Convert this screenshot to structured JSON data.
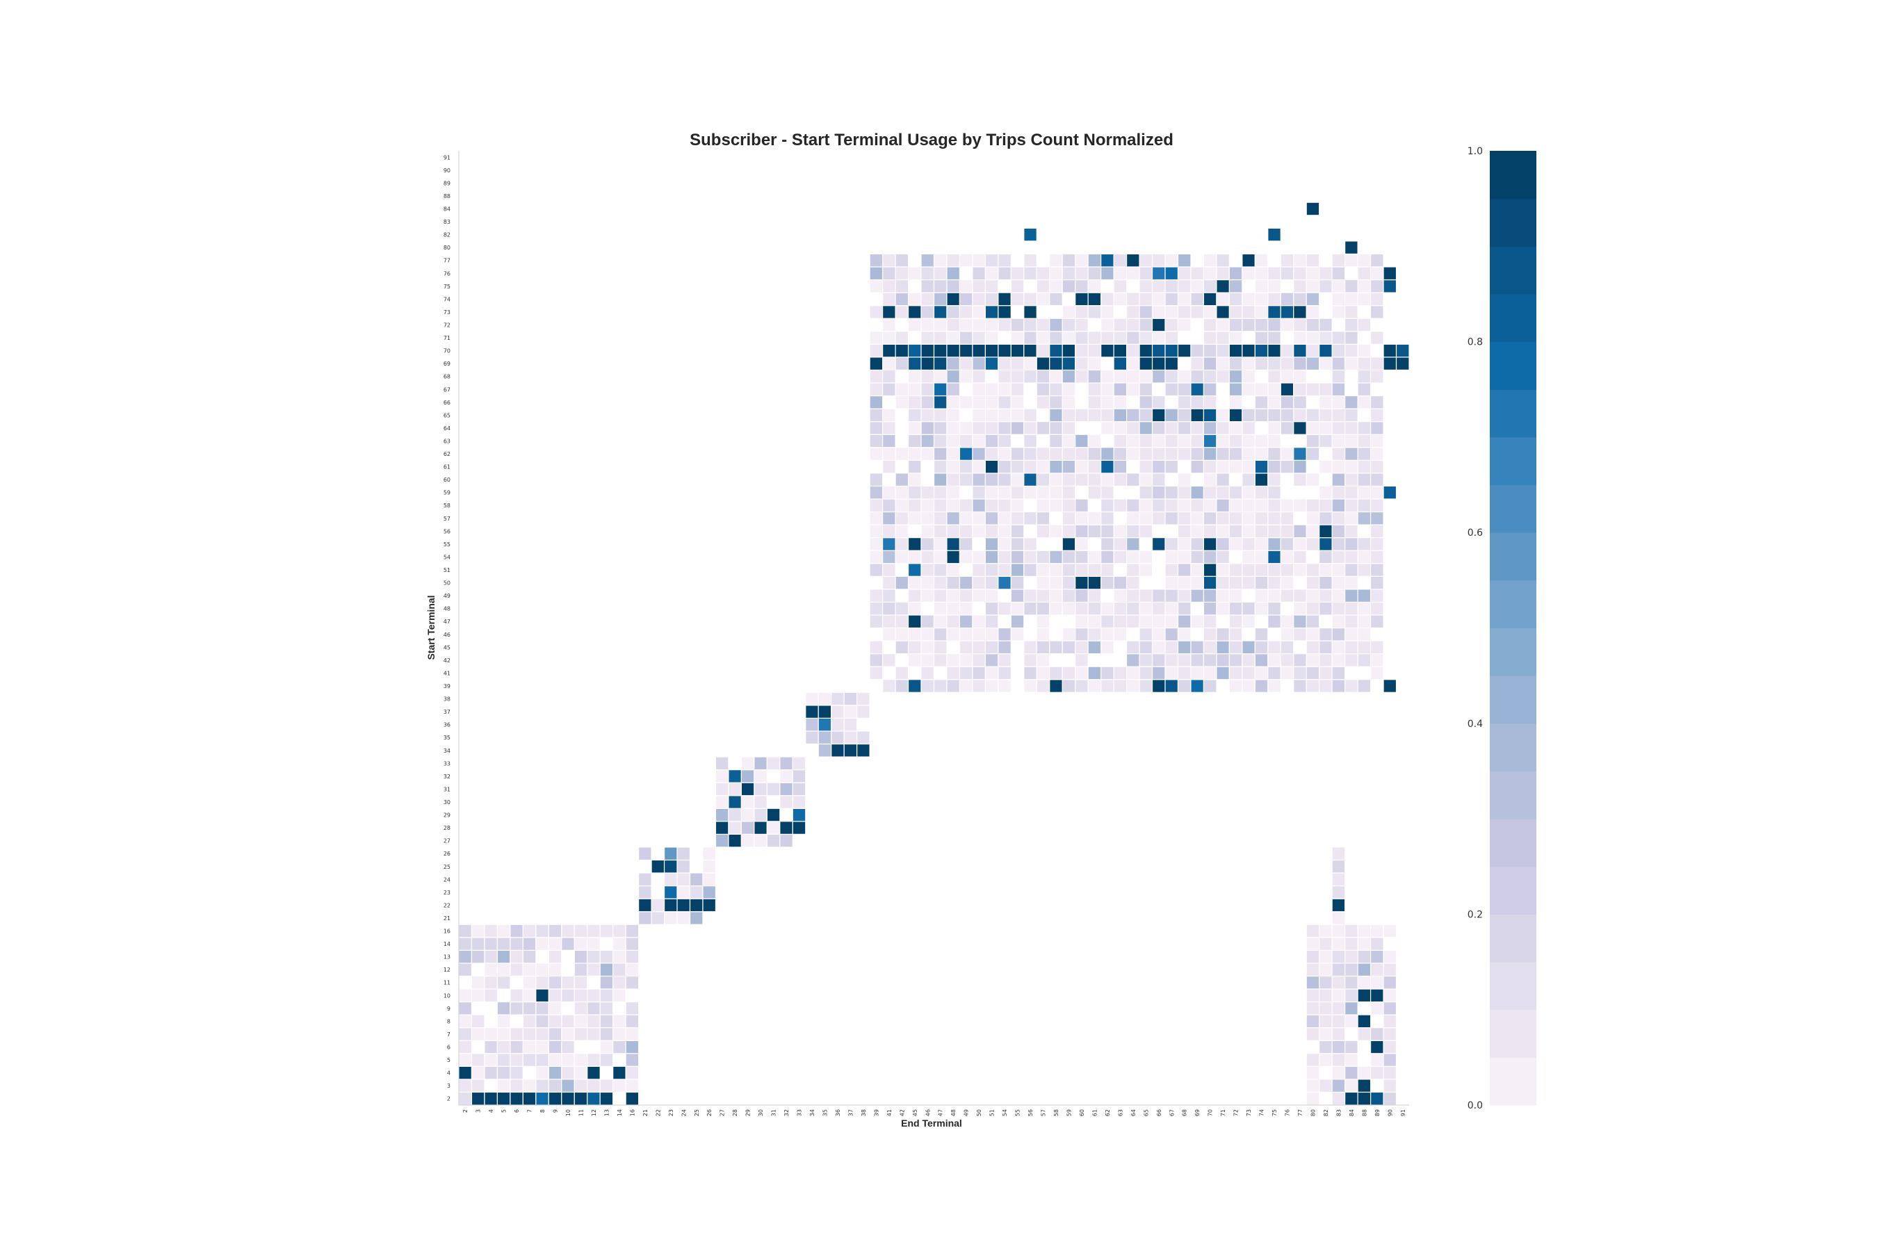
{
  "chart_data": {
    "type": "heatmap",
    "title": "Subscriber - Start Terminal Usage by Trips Count Normalized",
    "xlabel": "End Terminal",
    "ylabel": "Start Terminal",
    "terminals": [
      "2",
      "3",
      "4",
      "5",
      "6",
      "7",
      "8",
      "9",
      "10",
      "11",
      "12",
      "13",
      "14",
      "16",
      "21",
      "22",
      "23",
      "24",
      "25",
      "26",
      "27",
      "28",
      "29",
      "30",
      "31",
      "32",
      "33",
      "34",
      "35",
      "36",
      "37",
      "38",
      "39",
      "41",
      "42",
      "45",
      "46",
      "47",
      "48",
      "49",
      "50",
      "51",
      "54",
      "55",
      "56",
      "57",
      "58",
      "59",
      "60",
      "61",
      "62",
      "63",
      "64",
      "65",
      "66",
      "67",
      "68",
      "69",
      "70",
      "71",
      "72",
      "73",
      "74",
      "75",
      "76",
      "77",
      "80",
      "82",
      "83",
      "84",
      "88",
      "89",
      "90",
      "91"
    ],
    "colorbar": {
      "min": 0.0,
      "max": 1.0,
      "ticks": [
        "0.0",
        "0.2",
        "0.4",
        "0.6",
        "0.8",
        "1.0"
      ],
      "levels": 20
    },
    "colormap": [
      "#f6eff7",
      "#ede6f2",
      "#e3dfee",
      "#d9d6ea",
      "#cfcee6",
      "#c4c6e2",
      "#b7c0dd",
      "#a9bad9",
      "#98b3d5",
      "#86acd0",
      "#73a3cc",
      "#5f98c5",
      "#4b8dc0",
      "#3783bb",
      "#2277b3",
      "#0f6aa8",
      "#0b609a",
      "#08568a",
      "#064b79",
      "#034168"
    ],
    "grid": false,
    "colorbar_position": "right",
    "blocks": [
      {
        "rows": [
          0,
          13
        ],
        "cols": [
          0,
          13
        ]
      },
      {
        "rows": [
          14,
          19
        ],
        "cols": [
          14,
          19
        ]
      },
      {
        "rows": [
          20,
          26
        ],
        "cols": [
          20,
          26
        ]
      },
      {
        "rows": [
          27,
          31
        ],
        "cols": [
          27,
          31
        ]
      },
      {
        "rows": [
          32,
          65
        ],
        "cols": [
          32,
          71
        ]
      },
      {
        "rows": [
          0,
          13
        ],
        "cols": [
          66,
          72
        ]
      },
      {
        "rows": [
          14,
          19
        ],
        "cols": [
          68,
          68
        ]
      }
    ],
    "highlights": [
      {
        "row": "2",
        "col": "3",
        "value": 1.0
      },
      {
        "row": "2",
        "col": "4",
        "value": 1.0
      },
      {
        "row": "2",
        "col": "5",
        "value": 1.0
      },
      {
        "row": "2",
        "col": "6",
        "value": 1.0
      },
      {
        "row": "2",
        "col": "7",
        "value": 1.0
      },
      {
        "row": "2",
        "col": "8",
        "value": 0.75
      },
      {
        "row": "2",
        "col": "9",
        "value": 1.0
      },
      {
        "row": "2",
        "col": "10",
        "value": 1.0
      },
      {
        "row": "2",
        "col": "11",
        "value": 1.0
      },
      {
        "row": "2",
        "col": "12",
        "value": 0.8
      },
      {
        "row": "2",
        "col": "13",
        "value": 1.0
      },
      {
        "row": "2",
        "col": "16",
        "value": 1.0
      },
      {
        "row": "2",
        "col": "84",
        "value": 1.0
      },
      {
        "row": "2",
        "col": "88",
        "value": 1.0
      },
      {
        "row": "2",
        "col": "89",
        "value": 0.85
      },
      {
        "row": "3",
        "col": "88",
        "value": 1.0
      },
      {
        "row": "4",
        "col": "2",
        "value": 1.0
      },
      {
        "row": "4",
        "col": "12",
        "value": 1.0
      },
      {
        "row": "4",
        "col": "14",
        "value": 1.0
      },
      {
        "row": "6",
        "col": "89",
        "value": 1.0
      },
      {
        "row": "8",
        "col": "88",
        "value": 1.0
      },
      {
        "row": "10",
        "col": "8",
        "value": 1.0
      },
      {
        "row": "10",
        "col": "88",
        "value": 1.0
      },
      {
        "row": "10",
        "col": "89",
        "value": 1.0
      },
      {
        "row": "22",
        "col": "21",
        "value": 1.0
      },
      {
        "row": "22",
        "col": "23",
        "value": 1.0
      },
      {
        "row": "22",
        "col": "24",
        "value": 1.0
      },
      {
        "row": "22",
        "col": "25",
        "value": 1.0
      },
      {
        "row": "22",
        "col": "26",
        "value": 1.0
      },
      {
        "row": "22",
        "col": "83",
        "value": 1.0
      },
      {
        "row": "23",
        "col": "23",
        "value": 0.75
      },
      {
        "row": "25",
        "col": "22",
        "value": 1.0
      },
      {
        "row": "25",
        "col": "23",
        "value": 0.9
      },
      {
        "row": "26",
        "col": "23",
        "value": 0.55
      },
      {
        "row": "27",
        "col": "28",
        "value": 1.0
      },
      {
        "row": "28",
        "col": "27",
        "value": 1.0
      },
      {
        "row": "28",
        "col": "30",
        "value": 1.0
      },
      {
        "row": "28",
        "col": "32",
        "value": 1.0
      },
      {
        "row": "28",
        "col": "33",
        "value": 1.0
      },
      {
        "row": "29",
        "col": "31",
        "value": 1.0
      },
      {
        "row": "29",
        "col": "33",
        "value": 0.75
      },
      {
        "row": "30",
        "col": "28",
        "value": 0.85
      },
      {
        "row": "31",
        "col": "29",
        "value": 1.0
      },
      {
        "row": "32",
        "col": "28",
        "value": 0.8
      },
      {
        "row": "34",
        "col": "36",
        "value": 1.0
      },
      {
        "row": "34",
        "col": "37",
        "value": 1.0
      },
      {
        "row": "34",
        "col": "38",
        "value": 1.0
      },
      {
        "row": "36",
        "col": "35",
        "value": 0.7
      },
      {
        "row": "37",
        "col": "34",
        "value": 1.0
      },
      {
        "row": "37",
        "col": "35",
        "value": 1.0
      },
      {
        "row": "39",
        "col": "45",
        "value": 0.85
      },
      {
        "row": "39",
        "col": "58",
        "value": 1.0
      },
      {
        "row": "39",
        "col": "66",
        "value": 1.0
      },
      {
        "row": "39",
        "col": "67",
        "value": 0.85
      },
      {
        "row": "39",
        "col": "69",
        "value": 0.75
      },
      {
        "row": "39",
        "col": "90",
        "value": 1.0
      },
      {
        "row": "47",
        "col": "45",
        "value": 1.0
      },
      {
        "row": "50",
        "col": "60",
        "value": 1.0
      },
      {
        "row": "50",
        "col": "61",
        "value": 1.0
      },
      {
        "row": "50",
        "col": "70",
        "value": 0.85
      },
      {
        "row": "50",
        "col": "54",
        "value": 0.7
      },
      {
        "row": "51",
        "col": "45",
        "value": 0.75
      },
      {
        "row": "51",
        "col": "70",
        "value": 1.0
      },
      {
        "row": "54",
        "col": "48",
        "value": 1.0
      },
      {
        "row": "54",
        "col": "75",
        "value": 0.8
      },
      {
        "row": "55",
        "col": "41",
        "value": 0.7
      },
      {
        "row": "55",
        "col": "45",
        "value": 1.0
      },
      {
        "row": "55",
        "col": "48",
        "value": 0.9
      },
      {
        "row": "55",
        "col": "59",
        "value": 1.0
      },
      {
        "row": "55",
        "col": "66",
        "value": 0.9
      },
      {
        "row": "55",
        "col": "70",
        "value": 1.0
      },
      {
        "row": "55",
        "col": "82",
        "value": 0.85
      },
      {
        "row": "56",
        "col": "82",
        "value": 1.0
      },
      {
        "row": "59",
        "col": "90",
        "value": 0.8
      },
      {
        "row": "60",
        "col": "56",
        "value": 0.8
      },
      {
        "row": "60",
        "col": "74",
        "value": 1.0
      },
      {
        "row": "61",
        "col": "51",
        "value": 1.0
      },
      {
        "row": "61",
        "col": "62",
        "value": 0.8
      },
      {
        "row": "61",
        "col": "74",
        "value": 0.8
      },
      {
        "row": "62",
        "col": "49",
        "value": 0.75
      },
      {
        "row": "62",
        "col": "77",
        "value": 0.7
      },
      {
        "row": "63",
        "col": "70",
        "value": 0.7
      },
      {
        "row": "64",
        "col": "77",
        "value": 1.0
      },
      {
        "row": "65",
        "col": "66",
        "value": 1.0
      },
      {
        "row": "65",
        "col": "69",
        "value": 1.0
      },
      {
        "row": "65",
        "col": "70",
        "value": 0.85
      },
      {
        "row": "65",
        "col": "72",
        "value": 1.0
      },
      {
        "row": "66",
        "col": "47",
        "value": 0.85
      },
      {
        "row": "67",
        "col": "47",
        "value": 0.75
      },
      {
        "row": "67",
        "col": "69",
        "value": 0.8
      },
      {
        "row": "67",
        "col": "76",
        "value": 1.0
      },
      {
        "row": "69",
        "col": "39",
        "value": 1.0
      },
      {
        "row": "69",
        "col": "45",
        "value": 0.85
      },
      {
        "row": "69",
        "col": "46",
        "value": 1.0
      },
      {
        "row": "69",
        "col": "47",
        "value": 0.9
      },
      {
        "row": "69",
        "col": "51",
        "value": 0.8
      },
      {
        "row": "69",
        "col": "57",
        "value": 1.0
      },
      {
        "row": "69",
        "col": "58",
        "value": 0.9
      },
      {
        "row": "69",
        "col": "59",
        "value": 0.85
      },
      {
        "row": "69",
        "col": "63",
        "value": 0.85
      },
      {
        "row": "69",
        "col": "65",
        "value": 1.0
      },
      {
        "row": "69",
        "col": "66",
        "value": 1.0
      },
      {
        "row": "69",
        "col": "67",
        "value": 1.0
      },
      {
        "row": "69",
        "col": "90",
        "value": 1.0
      },
      {
        "row": "69",
        "col": "91",
        "value": 1.0
      },
      {
        "row": "70",
        "col": "41",
        "value": 1.0
      },
      {
        "row": "70",
        "col": "42",
        "value": 1.0
      },
      {
        "row": "70",
        "col": "45",
        "value": 0.8
      },
      {
        "row": "70",
        "col": "46",
        "value": 1.0
      },
      {
        "row": "70",
        "col": "47",
        "value": 1.0
      },
      {
        "row": "70",
        "col": "48",
        "value": 1.0
      },
      {
        "row": "70",
        "col": "49",
        "value": 1.0
      },
      {
        "row": "70",
        "col": "50",
        "value": 1.0
      },
      {
        "row": "70",
        "col": "51",
        "value": 1.0
      },
      {
        "row": "70",
        "col": "54",
        "value": 1.0
      },
      {
        "row": "70",
        "col": "55",
        "value": 1.0
      },
      {
        "row": "70",
        "col": "56",
        "value": 1.0
      },
      {
        "row": "70",
        "col": "58",
        "value": 0.85
      },
      {
        "row": "70",
        "col": "59",
        "value": 1.0
      },
      {
        "row": "70",
        "col": "62",
        "value": 1.0
      },
      {
        "row": "70",
        "col": "63",
        "value": 1.0
      },
      {
        "row": "70",
        "col": "65",
        "value": 1.0
      },
      {
        "row": "70",
        "col": "66",
        "value": 0.85
      },
      {
        "row": "70",
        "col": "67",
        "value": 0.85
      },
      {
        "row": "70",
        "col": "68",
        "value": 1.0
      },
      {
        "row": "70",
        "col": "72",
        "value": 1.0
      },
      {
        "row": "70",
        "col": "73",
        "value": 1.0
      },
      {
        "row": "70",
        "col": "74",
        "value": 0.85
      },
      {
        "row": "70",
        "col": "75",
        "value": 1.0
      },
      {
        "row": "70",
        "col": "77",
        "value": 0.85
      },
      {
        "row": "70",
        "col": "82",
        "value": 0.85
      },
      {
        "row": "70",
        "col": "90",
        "value": 1.0
      },
      {
        "row": "70",
        "col": "91",
        "value": 0.85
      },
      {
        "row": "72",
        "col": "66",
        "value": 1.0
      },
      {
        "row": "73",
        "col": "41",
        "value": 1.0
      },
      {
        "row": "73",
        "col": "45",
        "value": 1.0
      },
      {
        "row": "73",
        "col": "47",
        "value": 0.85
      },
      {
        "row": "73",
        "col": "51",
        "value": 0.85
      },
      {
        "row": "73",
        "col": "54",
        "value": 1.0
      },
      {
        "row": "73",
        "col": "56",
        "value": 1.0
      },
      {
        "row": "73",
        "col": "71",
        "value": 1.0
      },
      {
        "row": "73",
        "col": "75",
        "value": 0.85
      },
      {
        "row": "73",
        "col": "76",
        "value": 0.85
      },
      {
        "row": "73",
        "col": "77",
        "value": 1.0
      },
      {
        "row": "74",
        "col": "48",
        "value": 1.0
      },
      {
        "row": "74",
        "col": "54",
        "value": 1.0
      },
      {
        "row": "74",
        "col": "60",
        "value": 1.0
      },
      {
        "row": "74",
        "col": "61",
        "value": 1.0
      },
      {
        "row": "74",
        "col": "70",
        "value": 1.0
      },
      {
        "row": "75",
        "col": "71",
        "value": 1.0
      },
      {
        "row": "75",
        "col": "90",
        "value": 0.85
      },
      {
        "row": "76",
        "col": "66",
        "value": 0.7
      },
      {
        "row": "76",
        "col": "67",
        "value": 0.75
      },
      {
        "row": "76",
        "col": "90",
        "value": 1.0
      },
      {
        "row": "77",
        "col": "64",
        "value": 1.0
      },
      {
        "row": "77",
        "col": "73",
        "value": 1.0
      },
      {
        "row": "77",
        "col": "62",
        "value": 0.8
      },
      {
        "row": "80",
        "col": "84",
        "value": 1.0
      },
      {
        "row": "82",
        "col": "56",
        "value": 0.8
      },
      {
        "row": "82",
        "col": "75",
        "value": 0.85
      },
      {
        "row": "84",
        "col": "80",
        "value": 1.0
      }
    ]
  }
}
